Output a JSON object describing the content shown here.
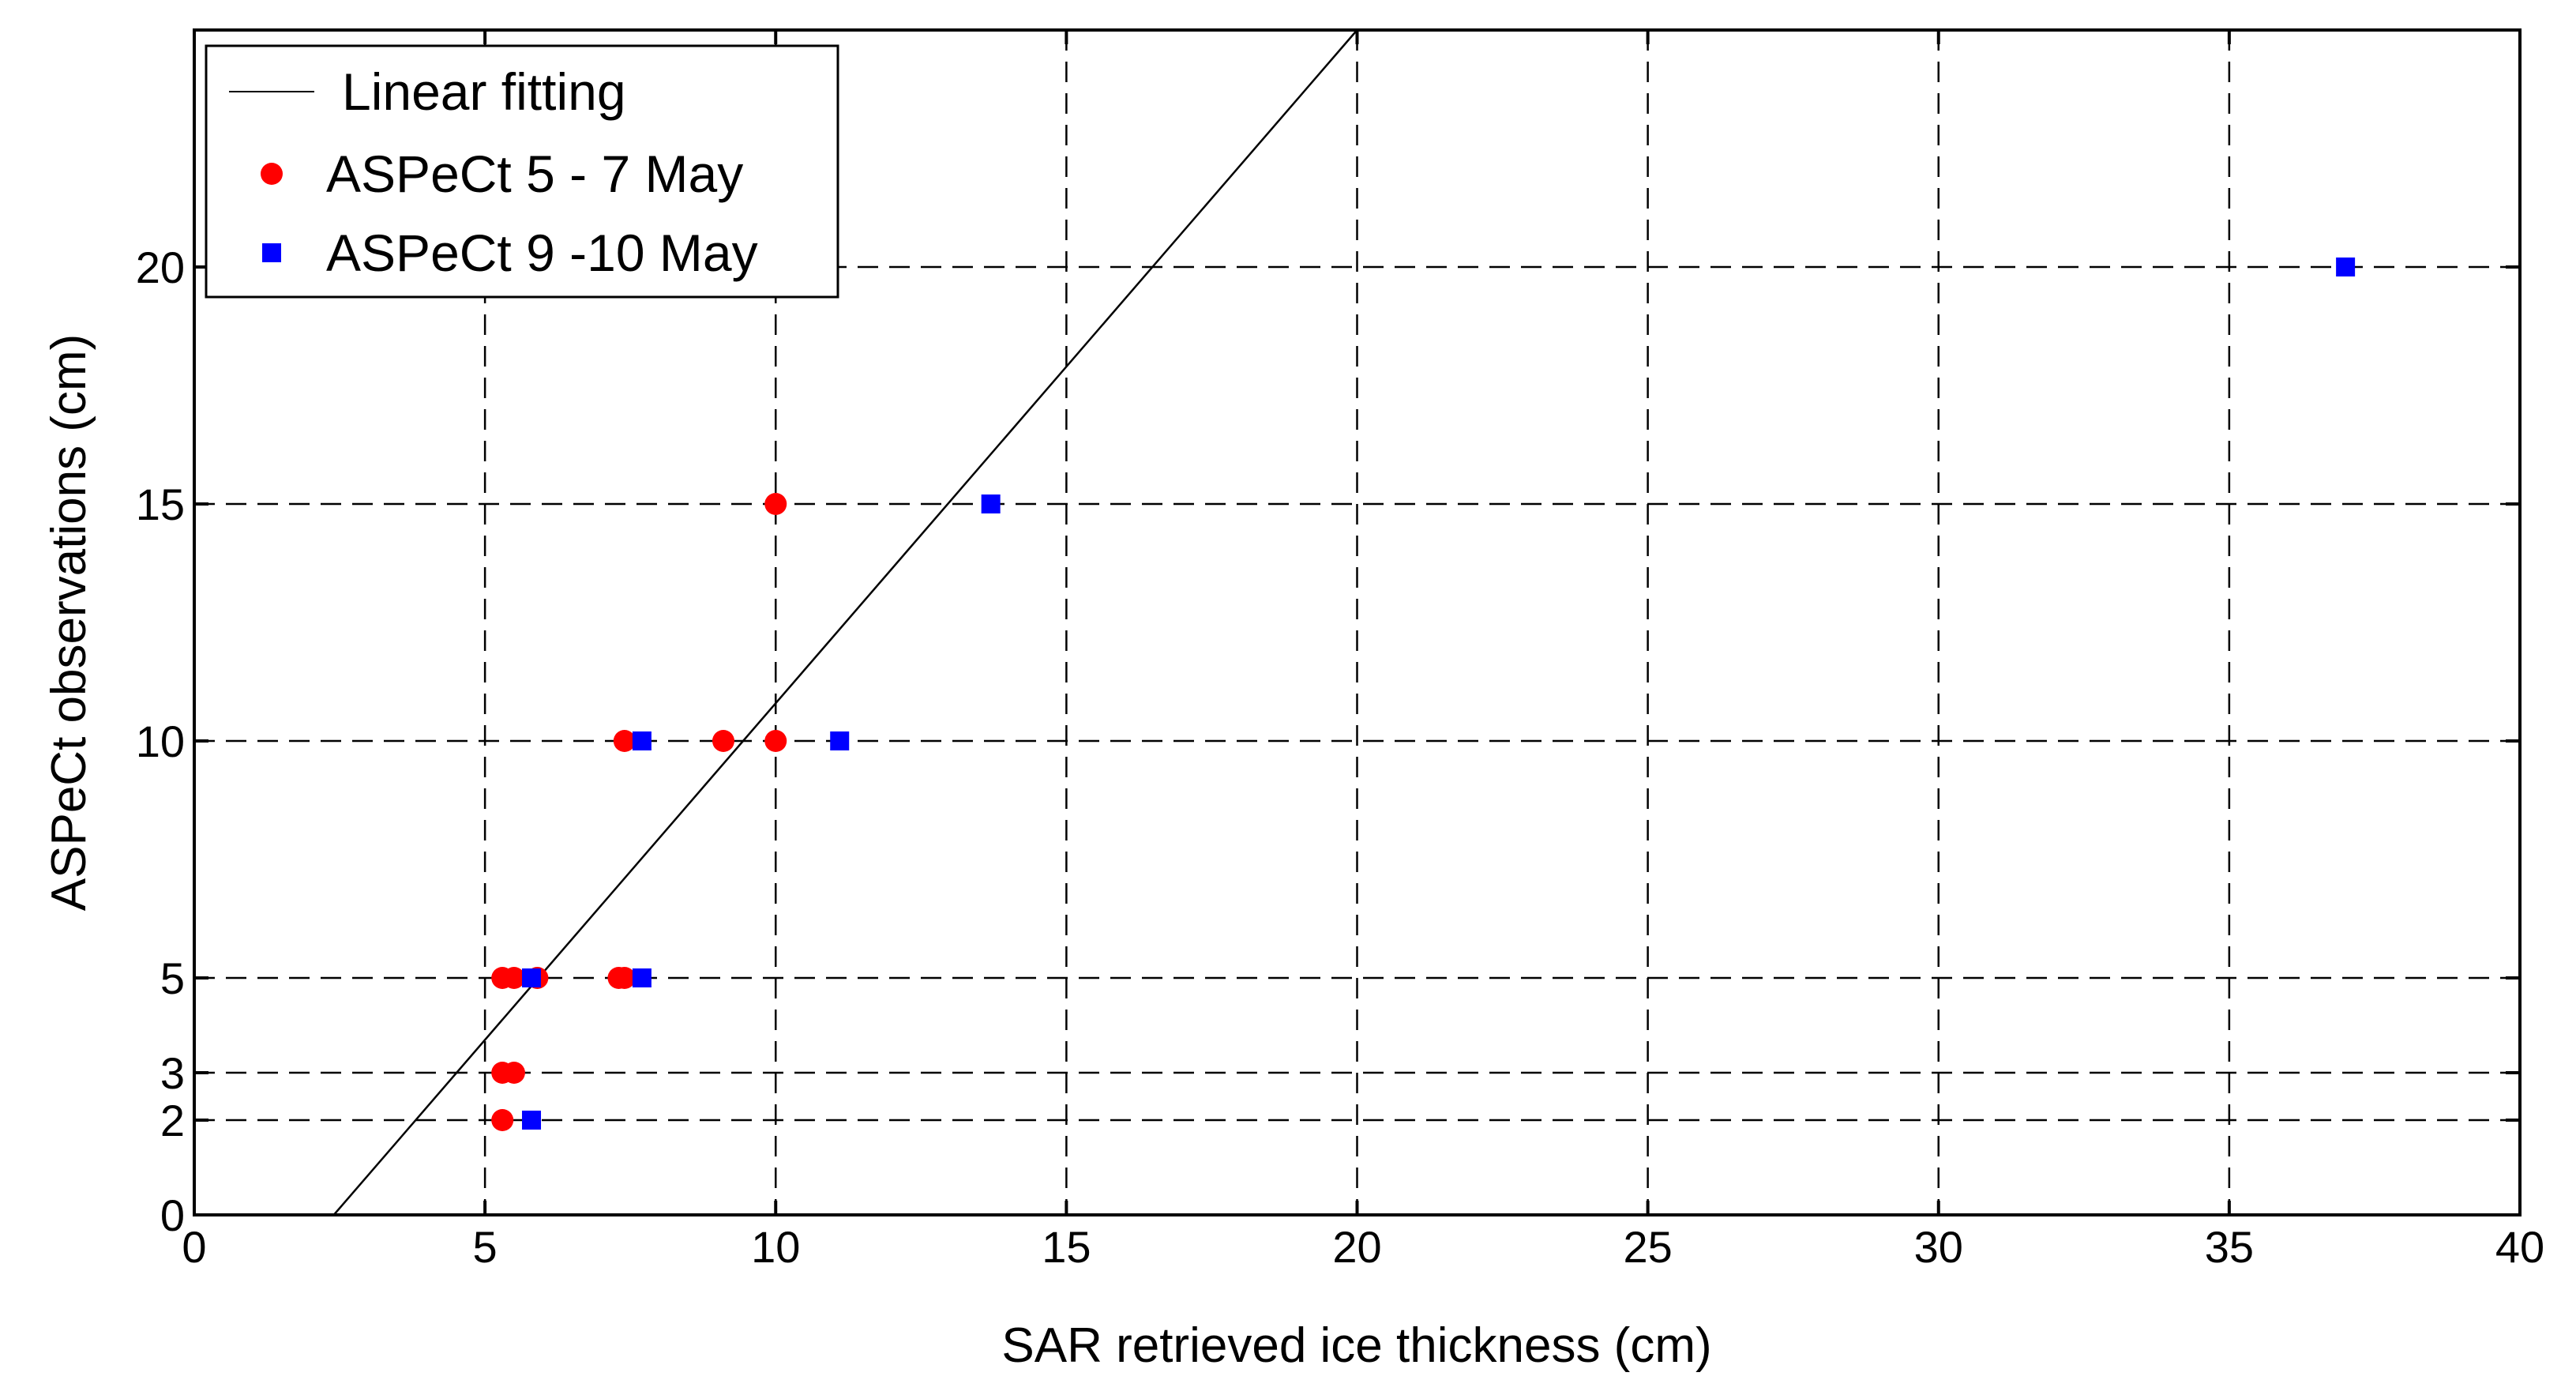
{
  "chart_data": {
    "type": "scatter",
    "title": "",
    "xlabel": "SAR retrieved ice thickness (cm)",
    "ylabel": "ASPeCt observations (cm)",
    "xlim": [
      0,
      40
    ],
    "ylim": [
      0,
      25
    ],
    "xticks": [
      0,
      5,
      10,
      15,
      20,
      25,
      30,
      35,
      40
    ],
    "yticks": [
      0,
      2,
      3,
      5,
      10,
      15,
      20
    ],
    "grid": true,
    "legend_position": "top-left",
    "series": [
      {
        "name": "Linear fitting",
        "kind": "line",
        "color": "#000000",
        "points": [
          [
            2.4,
            0
          ],
          [
            20.0,
            25
          ]
        ]
      },
      {
        "name": "ASPeCt 5 - 7 May",
        "kind": "marker",
        "marker": "circle",
        "color": "#ff0000",
        "points": [
          [
            5.3,
            2
          ],
          [
            5.3,
            3
          ],
          [
            5.5,
            3
          ],
          [
            5.3,
            5
          ],
          [
            5.5,
            5
          ],
          [
            5.9,
            5
          ],
          [
            7.3,
            5
          ],
          [
            7.4,
            5
          ],
          [
            7.4,
            10
          ],
          [
            9.1,
            10
          ],
          [
            10.0,
            10
          ],
          [
            10.0,
            15
          ]
        ]
      },
      {
        "name": "ASPeCt 9 -10 May",
        "kind": "marker",
        "marker": "square",
        "color": "#0000ff",
        "points": [
          [
            5.8,
            2
          ],
          [
            5.8,
            5
          ],
          [
            7.7,
            5
          ],
          [
            7.7,
            10
          ],
          [
            11.1,
            10
          ],
          [
            13.7,
            15
          ],
          [
            37.0,
            20
          ]
        ]
      }
    ]
  }
}
